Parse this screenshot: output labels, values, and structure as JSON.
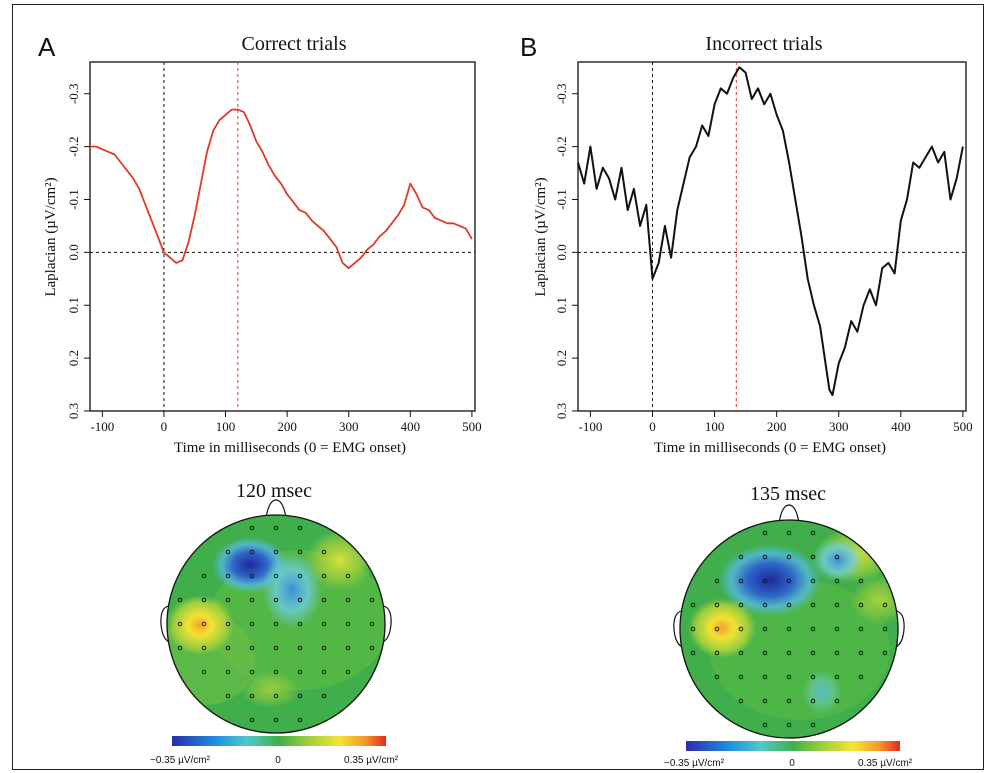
{
  "figure": {
    "panel_labels": [
      "A",
      "B"
    ],
    "colorbar": {
      "min_label": "−0.35 µV/cm²",
      "mid_label": "0",
      "max_label": "0.35 µV/cm²"
    },
    "topomaps": [
      {
        "label": "120 msec"
      },
      {
        "label": "135 msec"
      }
    ]
  },
  "chart_data": [
    {
      "type": "line",
      "title": "Correct trials",
      "xlabel": "Time in milliseconds (0 = EMG onset)",
      "ylabel": "Laplacian (µV/cm²)",
      "xlim": [
        -120,
        505
      ],
      "ylim": [
        0.3,
        -0.36
      ],
      "y_inverted": true,
      "xticks": [
        -100,
        0,
        100,
        200,
        300,
        400,
        500
      ],
      "yticks": [
        0.3,
        0.2,
        0.1,
        0.0,
        -0.1,
        -0.2,
        -0.3
      ],
      "ytick_labels": [
        "0.3",
        "0.2",
        "0.1",
        "0.0",
        "-0.1",
        "-0.2",
        "-0.3"
      ],
      "vlines": [
        {
          "x": 0,
          "color": "#111111",
          "style": "dashed"
        },
        {
          "x": 120,
          "color": "#e0392b",
          "style": "dashed"
        }
      ],
      "hlines": [
        {
          "y": 0,
          "color": "#111111",
          "style": "dashed"
        }
      ],
      "series": [
        {
          "color": "#e0392b",
          "x": [
            -120,
            -110,
            -100,
            -90,
            -80,
            -70,
            -60,
            -50,
            -40,
            -30,
            -20,
            -10,
            0,
            10,
            20,
            30,
            40,
            50,
            60,
            70,
            80,
            90,
            100,
            110,
            120,
            130,
            140,
            150,
            160,
            170,
            180,
            190,
            200,
            210,
            220,
            230,
            240,
            250,
            260,
            270,
            280,
            290,
            300,
            310,
            320,
            330,
            340,
            350,
            360,
            370,
            380,
            390,
            400,
            410,
            420,
            430,
            440,
            450,
            460,
            470,
            480,
            490,
            500
          ],
          "y": [
            -0.2,
            -0.2,
            -0.195,
            -0.19,
            -0.185,
            -0.17,
            -0.155,
            -0.14,
            -0.12,
            -0.09,
            -0.06,
            -0.03,
            0.0,
            0.01,
            0.02,
            0.015,
            -0.02,
            -0.07,
            -0.13,
            -0.19,
            -0.23,
            -0.25,
            -0.26,
            -0.27,
            -0.27,
            -0.265,
            -0.24,
            -0.21,
            -0.19,
            -0.165,
            -0.145,
            -0.13,
            -0.11,
            -0.095,
            -0.08,
            -0.075,
            -0.06,
            -0.05,
            -0.04,
            -0.025,
            -0.01,
            0.02,
            0.03,
            0.02,
            0.01,
            -0.005,
            -0.015,
            -0.03,
            -0.04,
            -0.055,
            -0.07,
            -0.09,
            -0.13,
            -0.11,
            -0.085,
            -0.08,
            -0.065,
            -0.06,
            -0.055,
            -0.055,
            -0.05,
            -0.045,
            -0.025
          ]
        }
      ]
    },
    {
      "type": "line",
      "title": "Incorrect trials",
      "xlabel": "Time in milliseconds (0 = EMG onset)",
      "ylabel": "Laplacian (µV/cm²)",
      "xlim": [
        -120,
        505
      ],
      "ylim": [
        0.3,
        -0.36
      ],
      "y_inverted": true,
      "xticks": [
        -100,
        0,
        100,
        200,
        300,
        400,
        500
      ],
      "yticks": [
        0.3,
        0.2,
        0.1,
        0.0,
        -0.1,
        -0.2,
        -0.3
      ],
      "ytick_labels": [
        "0.3",
        "0.2",
        "0.1",
        "0.0",
        "-0.1",
        "-0.2",
        "-0.3"
      ],
      "vlines": [
        {
          "x": 0,
          "color": "#111111",
          "style": "dashed"
        },
        {
          "x": 135,
          "color": "#e0392b",
          "style": "dashed"
        }
      ],
      "hlines": [
        {
          "y": 0,
          "color": "#111111",
          "style": "dashed"
        }
      ],
      "series": [
        {
          "color": "#111111",
          "x": [
            -120,
            -110,
            -100,
            -90,
            -80,
            -70,
            -60,
            -50,
            -40,
            -30,
            -20,
            -10,
            -5,
            0,
            10,
            20,
            30,
            40,
            50,
            60,
            70,
            80,
            90,
            100,
            110,
            120,
            130,
            140,
            150,
            160,
            170,
            180,
            190,
            200,
            210,
            220,
            230,
            240,
            250,
            260,
            270,
            280,
            285,
            290,
            300,
            310,
            320,
            330,
            340,
            350,
            360,
            370,
            380,
            390,
            400,
            410,
            420,
            430,
            440,
            450,
            460,
            470,
            480,
            490,
            500
          ],
          "y": [
            -0.17,
            -0.13,
            -0.2,
            -0.12,
            -0.16,
            -0.14,
            -0.1,
            -0.16,
            -0.08,
            -0.12,
            -0.05,
            -0.09,
            -0.02,
            0.05,
            0.02,
            -0.05,
            0.01,
            -0.08,
            -0.13,
            -0.18,
            -0.2,
            -0.24,
            -0.22,
            -0.28,
            -0.31,
            -0.3,
            -0.33,
            -0.35,
            -0.34,
            -0.29,
            -0.31,
            -0.28,
            -0.3,
            -0.26,
            -0.23,
            -0.17,
            -0.1,
            -0.03,
            0.05,
            0.1,
            0.14,
            0.22,
            0.26,
            0.27,
            0.21,
            0.18,
            0.13,
            0.15,
            0.1,
            0.07,
            0.1,
            0.03,
            0.02,
            0.04,
            -0.06,
            -0.1,
            -0.17,
            -0.16,
            -0.18,
            -0.2,
            -0.17,
            -0.19,
            -0.1,
            -0.14,
            -0.2
          ]
        }
      ]
    }
  ]
}
